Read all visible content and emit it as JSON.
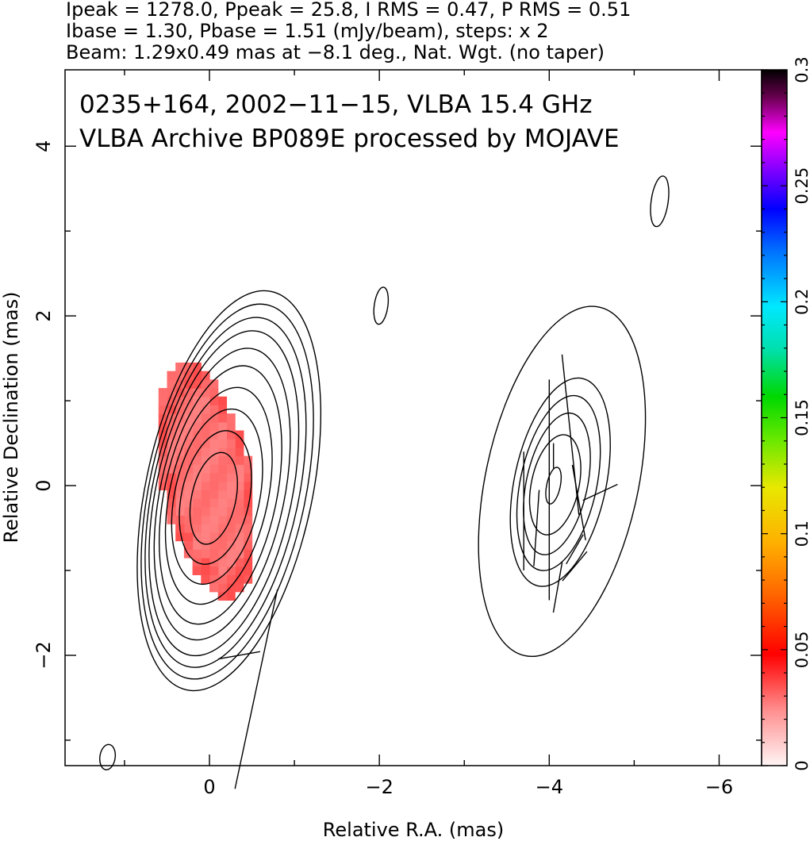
{
  "header": {
    "line1": "Ipeak = 1278.0, Ppeak = 25.8, I RMS = 0.47, P RMS = 0.51",
    "line2": "Ibase = 1.30, Pbase = 1.51 (mJy/beam), steps: x 2",
    "line3": "Beam: 1.29x0.49 mas at −8.1 deg., Nat. Wgt. (no taper)"
  },
  "annotation": {
    "line1": "0235+164, 2002−11−15, VLBA 15.4 GHz",
    "line2": "VLBA Archive BP089E processed by MOJAVE"
  },
  "chart_data": {
    "type": "heatmap",
    "xlabel": "Relative R.A. (mas)",
    "ylabel": "Relative Declination (mas)",
    "xlim": [
      1.7,
      -6.5
    ],
    "ylim": [
      -3.3,
      4.9
    ],
    "x_ticks": [
      0,
      -2,
      -4,
      -6
    ],
    "x_tick_labels": [
      "0",
      "−2",
      "−4",
      "−6"
    ],
    "y_ticks": [
      -2,
      0,
      2,
      4
    ],
    "y_tick_labels": [
      "−2",
      "0",
      "2",
      "4"
    ],
    "colorbar": {
      "range": [
        0,
        0.3
      ],
      "ticks": [
        0,
        0.05,
        0.1,
        0.15,
        0.2,
        0.25,
        0.3
      ],
      "tick_labels": [
        "0",
        "0.05",
        "0.1",
        "0.15",
        "0.2",
        "0.25",
        "0.3"
      ]
    },
    "components": [
      {
        "center": [
          -0.05,
          -0.15
        ],
        "contour_semi_axes": [
          [
            0.26,
            0.55
          ],
          [
            0.4,
            0.8
          ],
          [
            0.5,
            1.05
          ],
          [
            0.58,
            1.3
          ],
          [
            0.66,
            1.55
          ],
          [
            0.73,
            1.75
          ],
          [
            0.8,
            1.95
          ],
          [
            0.86,
            2.1
          ],
          [
            0.92,
            2.25
          ],
          [
            0.98,
            2.4
          ]
        ],
        "contour_tilt_deg": 12,
        "polarization": {
          "x_range": [
            -0.5,
            0.55
          ],
          "y_range": [
            -1.35,
            1.45
          ],
          "value": 0.045
        }
      },
      {
        "center": [
          -4.05,
          0.0
        ],
        "contour_semi_axes": [
          [
            0.08,
            0.22
          ],
          [
            0.28,
            0.6
          ],
          [
            0.36,
            0.85
          ],
          [
            0.45,
            1.05
          ],
          [
            0.54,
            1.25
          ],
          [
            0.9,
            2.1
          ]
        ],
        "contour_tilt_deg": 12
      }
    ],
    "isolated_contours": [
      {
        "center": [
          -5.3,
          3.35
        ],
        "semi_axes": [
          0.1,
          0.3
        ]
      },
      {
        "center": [
          -2.02,
          2.12
        ],
        "semi_axes": [
          0.08,
          0.22
        ]
      },
      {
        "center": [
          1.2,
          -3.2
        ],
        "semi_axes": [
          0.09,
          0.15
        ]
      }
    ],
    "evpa_ticks": [
      {
        "x": -0.55,
        "y": -2.4,
        "length": 2.4,
        "angle_deg": 12
      },
      {
        "x": -0.35,
        "y": -2.0,
        "length": 0.5,
        "angle_deg": 80
      },
      {
        "x": -3.7,
        "y": -0.3,
        "length": 1.4,
        "angle_deg": 0
      },
      {
        "x": -3.85,
        "y": -0.5,
        "length": 0.9,
        "angle_deg": 4
      },
      {
        "x": -4.0,
        "y": -0.05,
        "length": 2.6,
        "angle_deg": 0
      },
      {
        "x": -4.25,
        "y": 0.6,
        "length": 1.9,
        "angle_deg": -6
      },
      {
        "x": -4.35,
        "y": -0.2,
        "length": 0.9,
        "angle_deg": -10
      },
      {
        "x": -4.3,
        "y": -0.75,
        "length": 0.4,
        "angle_deg": 30
      },
      {
        "x": -4.3,
        "y": -0.95,
        "length": 0.45,
        "angle_deg": 40
      },
      {
        "x": -4.6,
        "y": -0.08,
        "length": 0.45,
        "angle_deg": 65
      },
      {
        "x": -4.1,
        "y": -1.2,
        "length": 0.6,
        "angle_deg": 10
      },
      {
        "x": -4.05,
        "y": 0.35,
        "length": 0.3,
        "angle_deg": 0
      }
    ]
  }
}
